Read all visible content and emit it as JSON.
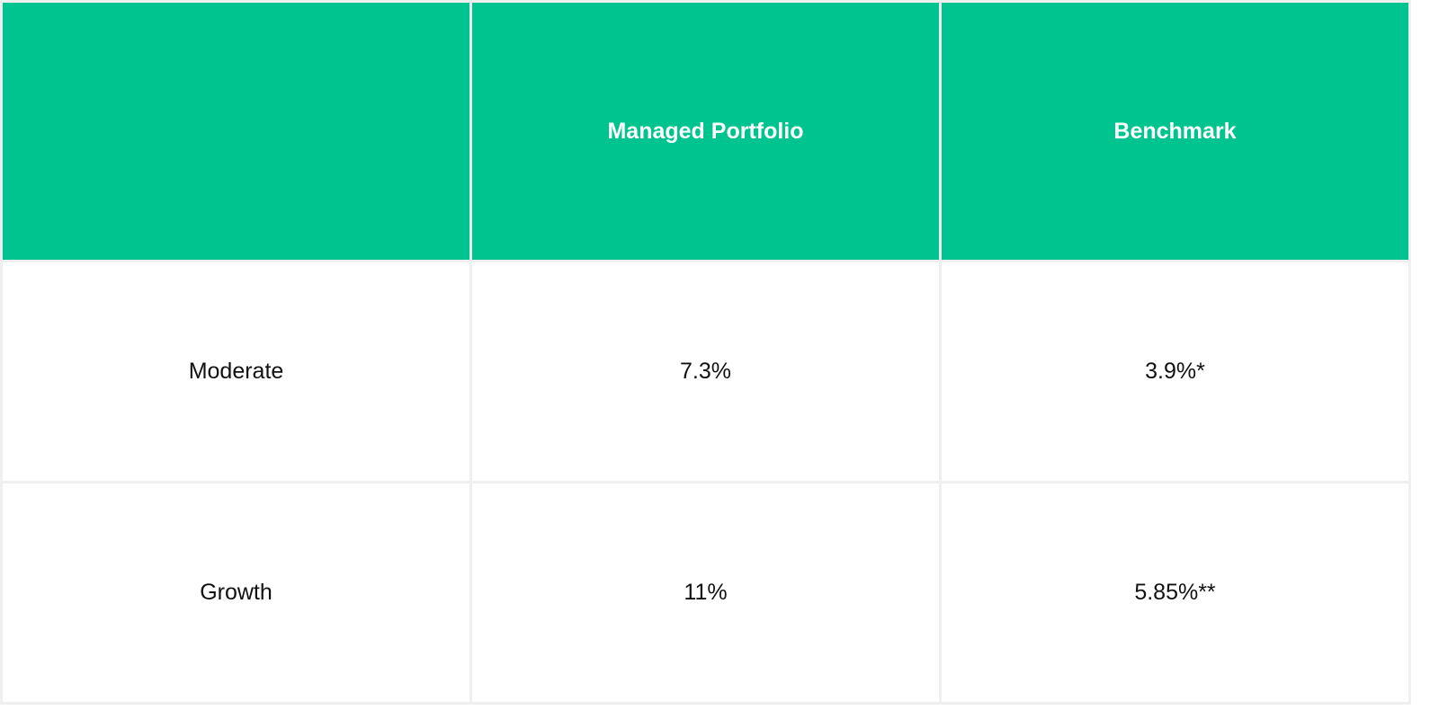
{
  "table": {
    "headers": [
      "",
      "Managed Portfolio",
      "Benchmark"
    ],
    "rows": [
      [
        "Moderate",
        "7.3%",
        "3.9%*"
      ],
      [
        "Growth",
        "11%",
        "5.85%**"
      ]
    ]
  },
  "colors": {
    "header_bg": "#00c48f",
    "border": "#efefef"
  }
}
